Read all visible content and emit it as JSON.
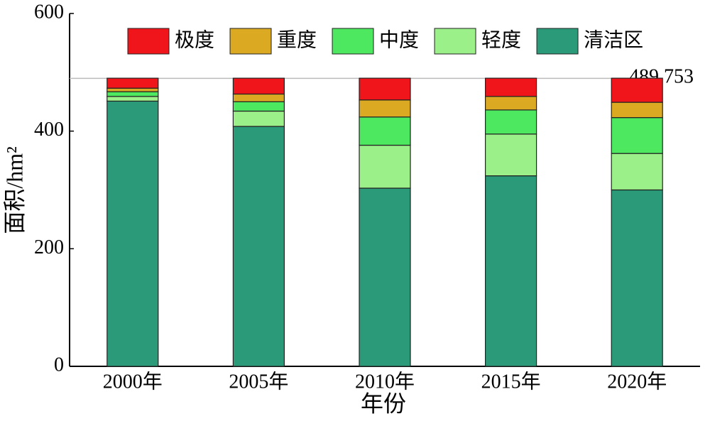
{
  "chart_data": {
    "type": "stacked_bar",
    "categories": [
      "2000年",
      "2005年",
      "2010年",
      "2015年",
      "2020年"
    ],
    "series": [
      {
        "name": "清洁区",
        "color": "#2a9a78",
        "values": [
          451,
          408,
          303,
          324,
          300
        ]
      },
      {
        "name": "轻度",
        "color": "#9cf08a",
        "values": [
          8,
          26,
          73,
          71,
          62
        ]
      },
      {
        "name": "中度",
        "color": "#4de860",
        "values": [
          8,
          16,
          48,
          41,
          61
        ]
      },
      {
        "name": "重度",
        "color": "#dcaa22",
        "values": [
          6,
          13,
          29,
          23,
          26
        ]
      },
      {
        "name": "极度",
        "color": "#f0151a",
        "values": [
          17,
          27,
          37,
          31,
          41
        ]
      }
    ],
    "xlabel": "年份",
    "ylabel": "面积/hm²",
    "ylim": [
      0,
      600
    ],
    "yticks": [
      0,
      200,
      400,
      600
    ],
    "reference_line": 489.753,
    "grid": false,
    "legend": "top"
  }
}
